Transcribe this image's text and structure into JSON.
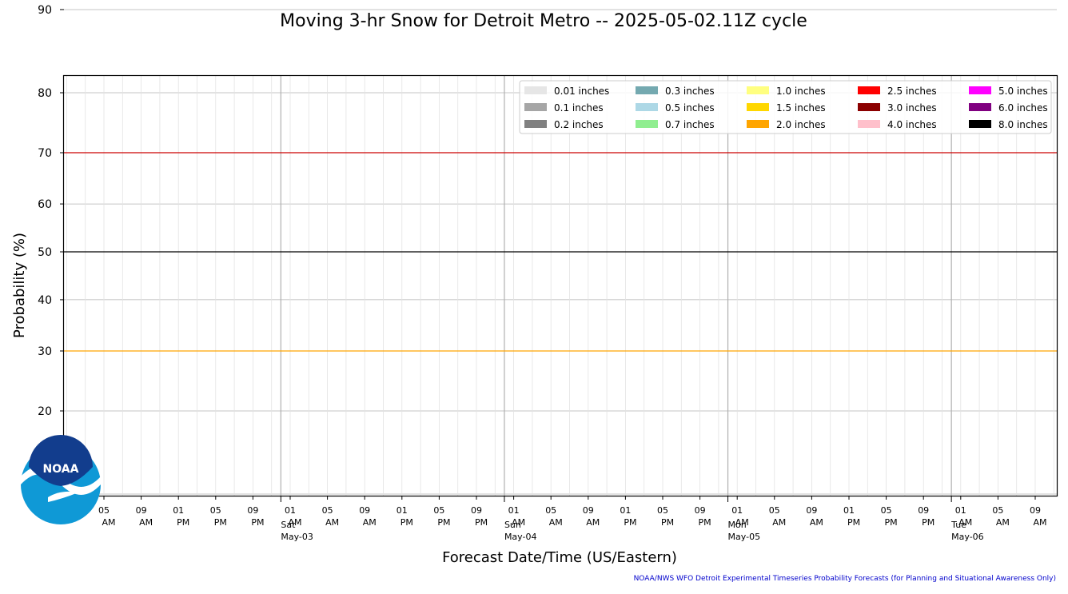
{
  "chart_data": {
    "type": "line",
    "title": "Moving 3-hr Snow for Detroit Metro -- 2025-05-02.11Z cycle",
    "xlabel": "Forecast Date/Time (US/Eastern)",
    "ylabel": "Probability (%)",
    "yscale": "probit",
    "yticks": [
      20,
      30,
      40,
      50,
      60,
      70,
      80,
      90
    ],
    "yminor_gridlines": [
      10
    ],
    "reference_lines": [
      {
        "y": 70,
        "color": "#cc0000"
      },
      {
        "y": 50,
        "color": "#000000"
      },
      {
        "y": 30,
        "color": "#ffa500"
      }
    ],
    "x_start": "2025-05-02 05 AM",
    "x_end": "2025-05-06 11 AM",
    "xtick_hours": [
      "05",
      "09",
      "01",
      "05",
      "09",
      "01",
      "05",
      "09",
      "01",
      "05",
      "09",
      "01",
      "05",
      "09",
      "01",
      "05",
      "09",
      "01",
      "05",
      "09",
      "01",
      "05",
      "09",
      "01",
      "05",
      "09"
    ],
    "xtick_ampm": [
      "AM",
      "AM",
      "PM",
      "PM",
      "PM",
      "AM",
      "AM",
      "AM",
      "PM",
      "PM",
      "PM",
      "AM",
      "AM",
      "AM",
      "PM",
      "PM",
      "PM",
      "AM",
      "AM",
      "AM",
      "PM",
      "PM",
      "PM",
      "AM",
      "AM",
      "AM"
    ],
    "day_markers": [
      {
        "day": "Sat",
        "date": "May-03"
      },
      {
        "day": "Sun",
        "date": "May-04"
      },
      {
        "day": "Mon",
        "date": "May-05"
      },
      {
        "day": "Tue",
        "date": "May-06"
      }
    ],
    "legend": {
      "placement": "top-right",
      "columns": 5,
      "entries": [
        {
          "label": "0.01 inches",
          "color": "#e6e6e6"
        },
        {
          "label": "0.1 inches",
          "color": "#a6a6a6"
        },
        {
          "label": "0.2 inches",
          "color": "#808080"
        },
        {
          "label": "0.3 inches",
          "color": "#74a9b0"
        },
        {
          "label": "0.5 inches",
          "color": "#add8e6"
        },
        {
          "label": "0.7 inches",
          "color": "#90ee90"
        },
        {
          "label": "1.0 inches",
          "color": "#ffff80"
        },
        {
          "label": "1.5 inches",
          "color": "#ffd700"
        },
        {
          "label": "2.0 inches",
          "color": "#ffa500"
        },
        {
          "label": "2.5 inches",
          "color": "#ff0000"
        },
        {
          "label": "3.0 inches",
          "color": "#8b0000"
        },
        {
          "label": "4.0 inches",
          "color": "#ffc0cb"
        },
        {
          "label": "5.0 inches",
          "color": "#ff00ff"
        },
        {
          "label": "6.0 inches",
          "color": "#800080"
        },
        {
          "label": "8.0 inches",
          "color": "#000000"
        }
      ]
    },
    "series": [],
    "grid": true
  },
  "logo": {
    "text": "NOAA"
  },
  "footer": "NOAA/NWS WFO Detroit Experimental Timeseries Probability Forecasts (for Planning and Situational Awareness Only)"
}
